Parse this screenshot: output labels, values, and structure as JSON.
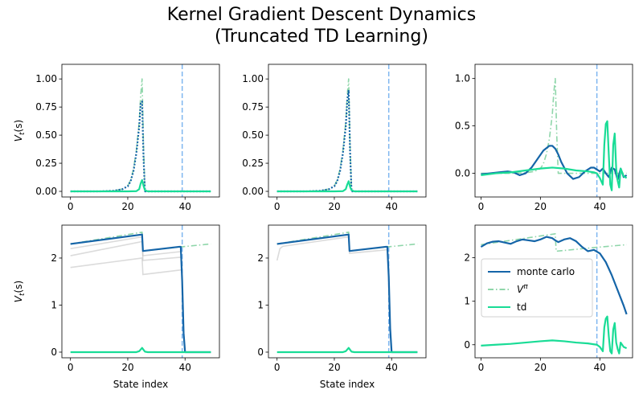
{
  "figure": {
    "title_line1": "Kernel Gradient Descent Dynamics",
    "title_line2": "(Truncated TD Learning)"
  },
  "colors": {
    "mc": "#1565a8",
    "vpi": "#8fd6aa",
    "td": "#19dc96",
    "vline": "#7fb6f0",
    "ghost": "#bdbdbd"
  },
  "chart_data": [
    {
      "type": "line",
      "panel": "top-left",
      "xlim": [
        -3,
        52
      ],
      "ylim": [
        -0.05,
        1.13
      ],
      "xticks": [
        0,
        20,
        40
      ],
      "yticks": [
        0.0,
        0.25,
        0.5,
        0.75,
        1.0
      ],
      "ytick_labels": [
        "0.00",
        "0.25",
        "0.50",
        "0.75",
        "1.00"
      ],
      "ylabel": "V_t(s)",
      "xlabel": "",
      "vline_x": 39,
      "series": [
        {
          "name": "V^π",
          "style": "dashdot",
          "color": "vpi",
          "x": [
            0,
            10,
            15,
            18,
            20,
            21,
            22,
            23,
            24,
            24.5,
            25,
            25.5,
            26,
            27,
            30,
            35,
            40,
            45,
            49
          ],
          "y": [
            0,
            0,
            0.005,
            0.02,
            0.05,
            0.1,
            0.2,
            0.36,
            0.62,
            0.85,
            1.0,
            0.4,
            0.0,
            0,
            0,
            0,
            0,
            0,
            0
          ]
        },
        {
          "name": "monte carlo",
          "style": "dotted",
          "color": "mc",
          "x": [
            0,
            10,
            15,
            18,
            20,
            21,
            22,
            23,
            24,
            24.5,
            25,
            25.5,
            26,
            27,
            30,
            35,
            40,
            45,
            49
          ],
          "y": [
            0,
            0,
            0.005,
            0.018,
            0.045,
            0.09,
            0.18,
            0.34,
            0.58,
            0.78,
            0.8,
            0.3,
            0.0,
            0,
            0,
            0,
            0,
            0,
            0
          ]
        },
        {
          "name": "td",
          "style": "solid",
          "color": "td",
          "x": [
            0,
            20,
            23,
            24,
            24.5,
            25,
            25.5,
            26,
            27,
            30,
            40,
            49
          ],
          "y": [
            0,
            0,
            0.002,
            0.02,
            0.07,
            0.1,
            0.05,
            0.01,
            0,
            0,
            0,
            0
          ]
        }
      ]
    },
    {
      "type": "line",
      "panel": "top-middle",
      "xlim": [
        -3,
        52
      ],
      "ylim": [
        -0.05,
        1.13
      ],
      "xticks": [
        0,
        20,
        40
      ],
      "yticks": [
        0.0,
        0.25,
        0.5,
        0.75,
        1.0
      ],
      "ytick_labels": [
        "0.00",
        "0.25",
        "0.50",
        "0.75",
        "1.00"
      ],
      "ylabel": "",
      "xlabel": "",
      "vline_x": 39,
      "series": [
        {
          "name": "V^π",
          "style": "dashdot",
          "color": "vpi",
          "x": [
            0,
            10,
            15,
            18,
            20,
            21,
            22,
            23,
            24,
            24.5,
            25,
            25.5,
            26,
            27,
            30,
            35,
            40,
            45,
            49
          ],
          "y": [
            0,
            0,
            0.005,
            0.02,
            0.05,
            0.1,
            0.2,
            0.36,
            0.62,
            0.85,
            1.0,
            0.4,
            0.0,
            0,
            0,
            0,
            0,
            0,
            0
          ]
        },
        {
          "name": "monte carlo",
          "style": "dotted",
          "color": "mc",
          "x": [
            0,
            10,
            15,
            18,
            20,
            21,
            22,
            23,
            24,
            24.5,
            25,
            25.5,
            26,
            27,
            30,
            35,
            40,
            45,
            49
          ],
          "y": [
            0,
            0,
            0.005,
            0.018,
            0.045,
            0.09,
            0.18,
            0.34,
            0.58,
            0.8,
            0.9,
            0.35,
            0.0,
            0,
            0,
            0,
            0,
            0,
            0
          ]
        },
        {
          "name": "td",
          "style": "solid",
          "color": "td",
          "x": [
            0,
            20,
            23,
            24,
            24.5,
            25,
            25.5,
            26,
            27,
            30,
            40,
            49
          ],
          "y": [
            0,
            0,
            0.002,
            0.02,
            0.06,
            0.09,
            0.04,
            0.01,
            0,
            0,
            0,
            0
          ]
        }
      ]
    },
    {
      "type": "line",
      "panel": "top-right",
      "xlim": [
        -2,
        51
      ],
      "ylim": [
        -0.25,
        1.15
      ],
      "xticks": [
        0,
        20,
        40
      ],
      "yticks": [
        0.0,
        0.5,
        1.0
      ],
      "ytick_labels": [
        "0.0",
        "0.5",
        "1.0"
      ],
      "ylabel": "",
      "xlabel": "",
      "vline_x": 39,
      "series": [
        {
          "name": "V^π",
          "style": "dashdot",
          "color": "vpi",
          "x": [
            0,
            10,
            15,
            18,
            20,
            21,
            22,
            23,
            24,
            24.5,
            25,
            25.5,
            26,
            27,
            30,
            35,
            40,
            45,
            49
          ],
          "y": [
            0,
            0,
            0.005,
            0.02,
            0.05,
            0.1,
            0.2,
            0.36,
            0.62,
            0.85,
            1.0,
            0.4,
            0.0,
            0,
            0,
            0,
            0,
            0,
            0
          ]
        },
        {
          "name": "monte carlo",
          "style": "solid",
          "color": "mc",
          "x": [
            0,
            3,
            6,
            9,
            11,
            13,
            15,
            17,
            19,
            21,
            23,
            24,
            25,
            26,
            27,
            29,
            31,
            33,
            35,
            37,
            38,
            39,
            40,
            41,
            42,
            43,
            44,
            45,
            46,
            47,
            48,
            49
          ],
          "y": [
            -0.01,
            0,
            0.01,
            0.02,
            0.01,
            -0.02,
            0.0,
            0.06,
            0.15,
            0.24,
            0.29,
            0.29,
            0.26,
            0.2,
            0.12,
            0.0,
            -0.06,
            -0.04,
            0.02,
            0.06,
            0.06,
            0.04,
            0.02,
            0.05,
            0.0,
            -0.04,
            0.06,
            0.04,
            -0.07,
            0.05,
            -0.04,
            -0.02
          ]
        },
        {
          "name": "td",
          "style": "solid",
          "color": "td",
          "x": [
            0,
            5,
            10,
            15,
            20,
            24,
            28,
            32,
            36,
            38,
            39,
            40,
            41,
            41.5,
            42,
            42.5,
            43,
            43.5,
            44,
            44.5,
            45,
            45.5,
            46,
            46.5,
            47,
            48,
            49
          ],
          "y": [
            -0.02,
            0,
            0.01,
            0.03,
            0.05,
            0.06,
            0.05,
            0.03,
            0.02,
            0.01,
            0.0,
            -0.05,
            -0.12,
            0.3,
            0.52,
            0.55,
            0.2,
            -0.12,
            -0.18,
            0.3,
            0.42,
            0.05,
            -0.08,
            -0.15,
            0.05,
            -0.03,
            -0.05
          ]
        }
      ]
    },
    {
      "type": "line",
      "panel": "bottom-left",
      "xlim": [
        -3,
        52
      ],
      "ylim": [
        -0.12,
        2.7
      ],
      "xticks": [
        0,
        20,
        40
      ],
      "yticks": [
        0,
        1,
        2
      ],
      "ytick_labels": [
        "0",
        "1",
        "2"
      ],
      "ylabel": "V_t(s)",
      "xlabel": "State index",
      "vline_x": 39,
      "series": [
        {
          "name": "V^π",
          "style": "dashdot",
          "color": "vpi",
          "x": [
            0,
            25,
            25.3,
            39,
            49
          ],
          "y": [
            2.3,
            2.55,
            2.15,
            2.24,
            2.3
          ]
        },
        {
          "name": "monte carlo",
          "style": "solid",
          "color": "mc",
          "x": [
            0,
            25,
            25.3,
            38,
            38.5,
            39,
            39.5,
            40,
            41,
            49
          ],
          "y": [
            2.3,
            2.5,
            2.15,
            2.24,
            2.24,
            1.5,
            0.4,
            0.0,
            0,
            0
          ]
        },
        {
          "name": "td",
          "style": "solid",
          "color": "td",
          "x": [
            0,
            23,
            24,
            25,
            25.5,
            26,
            27,
            30,
            40,
            49
          ],
          "y": [
            0,
            0,
            0.02,
            0.09,
            0.05,
            0.01,
            0,
            0,
            0,
            0
          ]
        }
      ],
      "ghost_series": [
        {
          "x": [
            0,
            25,
            25.3,
            39
          ],
          "y": [
            2.2,
            2.45,
            2.05,
            2.14
          ]
        },
        {
          "x": [
            0,
            25,
            25.3,
            39
          ],
          "y": [
            2.05,
            2.35,
            1.95,
            2.02
          ]
        },
        {
          "x": [
            0,
            25,
            25.3,
            39
          ],
          "y": [
            1.8,
            2.0,
            1.65,
            1.75
          ]
        }
      ]
    },
    {
      "type": "line",
      "panel": "bottom-middle",
      "xlim": [
        -3,
        52
      ],
      "ylim": [
        -0.12,
        2.7
      ],
      "xticks": [
        0,
        20,
        40
      ],
      "yticks": [
        0,
        1,
        2
      ],
      "ytick_labels": [
        "0",
        "1",
        "2"
      ],
      "ylabel": "",
      "xlabel": "State index",
      "vline_x": 39,
      "series": [
        {
          "name": "V^π",
          "style": "dashdot",
          "color": "vpi",
          "x": [
            0,
            25,
            25.3,
            39,
            49
          ],
          "y": [
            2.3,
            2.55,
            2.15,
            2.24,
            2.3
          ]
        },
        {
          "name": "monte carlo",
          "style": "solid",
          "color": "mc",
          "x": [
            0,
            25,
            25.3,
            38,
            38.5,
            39,
            39.5,
            40,
            41,
            49
          ],
          "y": [
            2.3,
            2.5,
            2.15,
            2.24,
            2.24,
            1.6,
            0.5,
            0.0,
            0,
            0
          ]
        },
        {
          "name": "td",
          "style": "solid",
          "color": "td",
          "x": [
            0,
            23,
            24,
            25,
            25.5,
            26,
            27,
            30,
            40,
            49
          ],
          "y": [
            0,
            0,
            0.02,
            0.09,
            0.05,
            0.01,
            0,
            0,
            0,
            0
          ]
        }
      ],
      "ghost_series": [
        {
          "x": [
            0,
            1,
            2,
            25,
            25.3,
            39
          ],
          "y": [
            1.95,
            2.2,
            2.25,
            2.45,
            2.1,
            2.18
          ]
        }
      ]
    },
    {
      "type": "line",
      "panel": "bottom-right",
      "xlim": [
        -2,
        51
      ],
      "ylim": [
        -0.3,
        2.75
      ],
      "xticks": [
        0,
        20,
        40
      ],
      "yticks": [
        0,
        1,
        2
      ],
      "ytick_labels": [
        "0",
        "1",
        "2"
      ],
      "ylabel": "",
      "xlabel": "",
      "vline_x": 39,
      "legend": {
        "position": "center-left",
        "entries": [
          "monte carlo",
          "V^π",
          "td"
        ]
      },
      "series": [
        {
          "name": "V^π",
          "style": "dashdot",
          "color": "vpi",
          "x": [
            0,
            25,
            25.3,
            39,
            49
          ],
          "y": [
            2.3,
            2.55,
            2.15,
            2.24,
            2.3
          ]
        },
        {
          "name": "monte carlo",
          "style": "solid",
          "color": "mc",
          "x": [
            0,
            2,
            4,
            6,
            8,
            10,
            12,
            14,
            16,
            18,
            20,
            22,
            24,
            25,
            26,
            28,
            30,
            32,
            34,
            36,
            38,
            40,
            42,
            44,
            46,
            48,
            49
          ],
          "y": [
            2.25,
            2.33,
            2.37,
            2.38,
            2.35,
            2.32,
            2.38,
            2.42,
            2.4,
            2.38,
            2.42,
            2.48,
            2.45,
            2.4,
            2.36,
            2.42,
            2.45,
            2.38,
            2.25,
            2.15,
            2.18,
            2.1,
            1.9,
            1.6,
            1.25,
            0.9,
            0.7
          ]
        },
        {
          "name": "td",
          "style": "solid",
          "color": "td",
          "x": [
            0,
            5,
            10,
            15,
            20,
            24,
            28,
            32,
            36,
            38,
            39,
            40,
            41,
            41.5,
            42,
            42.5,
            43,
            43.5,
            44,
            44.5,
            45,
            45.5,
            46,
            46.5,
            47,
            48,
            49
          ],
          "y": [
            -0.02,
            0,
            0.02,
            0.05,
            0.08,
            0.1,
            0.08,
            0.05,
            0.03,
            0.01,
            0.0,
            -0.05,
            -0.15,
            0.4,
            0.6,
            0.65,
            0.2,
            -0.15,
            -0.2,
            0.35,
            0.5,
            0.05,
            -0.1,
            -0.2,
            0.05,
            -0.05,
            -0.08
          ]
        }
      ]
    }
  ],
  "legend": {
    "monte_carlo": "monte carlo",
    "vpi_base": "V",
    "vpi_sup": "π",
    "td": "td"
  },
  "ylabel_base": "V",
  "ylabel_sub": "t",
  "ylabel_rest": "(s)"
}
